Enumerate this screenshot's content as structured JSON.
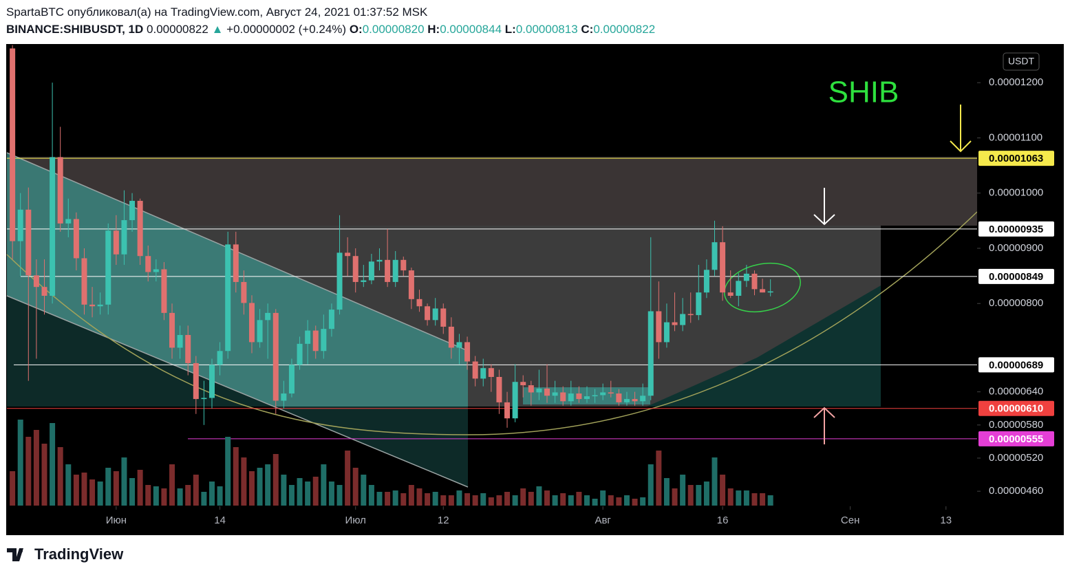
{
  "header": {
    "line1": "SpartaBTC опубликовал(а) на TradingView.com, Август 24, 2021 01:37:52 MSK",
    "symbol": "BINANCE:SHIBUSDT, 1D",
    "last": "0.00000822",
    "arrow": "▲",
    "change": "+0.00000002 (+0.24%)",
    "o_label": "O:",
    "o": "0.00000820",
    "h_label": "H:",
    "h": "0.00000844",
    "l_label": "L:",
    "l": "0.00000813",
    "c_label": "C:",
    "c": "0.00000822"
  },
  "chart_data": {
    "type": "candlestick",
    "currency": "USDT",
    "annotation": "SHIB",
    "up_color": "#3cc2b0",
    "down_color": "#e0716f",
    "volume_up_color": "#1f6e67",
    "volume_down_color": "#7b2c2c",
    "open": [
      1.262e-05,
      9.13e-06,
      9.7e-06,
      8.51e-06,
      8.3e-06,
      8.14e-06,
      1.065e-05,
      9.45e-06,
      9.53e-06,
      8.82e-06,
      7.98e-06,
      7.95e-06,
      7.98e-06,
      9.32e-06,
      8.89e-06,
      9.51e-06,
      9.86e-06,
      8.86e-06,
      8.57e-06,
      8.62e-06,
      7.83e-06,
      7.2e-06,
      7.43e-06,
      6.92e-06,
      6.27e-06,
      6.29e-06,
      6.89e-06,
      7.14e-06,
      9.07e-06,
      8.39e-06,
      8.01e-06,
      7.3e-06,
      7.7e-06,
      7.83e-06,
      6.24e-06,
      6.37e-06,
      6.89e-06,
      7.27e-06,
      7.51e-06,
      7.14e-06,
      7.54e-06,
      7.89e-06,
      8.92e-06,
      8.86e-06,
      8.39e-06,
      8.42e-06,
      8.76e-06,
      8.79e-06,
      8.39e-06,
      8.79e-06,
      8.6e-06,
      8.08e-06,
      7.95e-06,
      7.7e-06,
      7.91e-06,
      7.58e-06,
      7.2e-06,
      7.3e-06,
      6.95e-06,
      6.64e-06,
      6.83e-06,
      6.67e-06,
      6.21e-06,
      5.92e-06,
      6.58e-06,
      6.52e-06,
      6.39e-06,
      6.46e-06,
      6.33e-06,
      6.39e-06,
      6.23e-06,
      6.37e-06,
      6.27e-06,
      6.32e-06,
      6.34e-06,
      6.39e-06,
      6.37e-06,
      6.21e-06,
      6.27e-06,
      6.23e-06,
      6.33e-06,
      7.86e-06,
      7.3e-06,
      7.66e-06,
      7.61e-06,
      7.81e-06,
      7.79e-06,
      8.2e-06,
      8.61e-06,
      9.11e-06,
      8.2e-06,
      8.14e-06,
      8.41e-06,
      8.54e-06,
      8.26e-06,
      8.2e-06
    ],
    "high": [
      1.268e-05,
      1e-05,
      1.01e-05,
      8.8e-06,
      8.8e-06,
      1.2e-05,
      1.12e-05,
      9.9e-06,
      9.65e-06,
      9e-06,
      8.3e-06,
      8.2e-06,
      9.45e-06,
      9.6e-06,
      1.005e-05,
      1e-05,
      9.9e-06,
      9.05e-06,
      8.8e-06,
      8.75e-06,
      8e-06,
      7.6e-06,
      7.6e-06,
      7.05e-06,
      6.6e-06,
      7e-06,
      7.3e-06,
      9.3e-06,
      9.3e-06,
      8.6e-06,
      8.15e-06,
      7.9e-06,
      8e-06,
      7.9e-06,
      6.6e-06,
      7e-06,
      7.4e-06,
      7.7e-06,
      7.6e-06,
      7.8e-06,
      8e-06,
      9.6e-06,
      9.2e-06,
      9e-06,
      8.7e-06,
      8.9e-06,
      9e-06,
      9.35e-06,
      8.95e-06,
      8.85e-06,
      8.65e-06,
      8.25e-06,
      8e-06,
      8.1e-06,
      8e-06,
      7.75e-06,
      7.45e-06,
      7.4e-06,
      7.05e-06,
      7e-06,
      6.9e-06,
      6.8e-06,
      6.4e-06,
      6.9e-06,
      6.7e-06,
      6.6e-06,
      6.8e-06,
      6.9e-06,
      6.6e-06,
      6.5e-06,
      6.6e-06,
      6.5e-06,
      6.5e-06,
      6.45e-06,
      6.55e-06,
      6.6e-06,
      6.45e-06,
      6.4e-06,
      6.4e-06,
      6.55e-06,
      9.2e-06,
      8.4e-06,
      8e-06,
      8.2e-06,
      8.1e-06,
      8.2e-06,
      8.7e-06,
      8.8e-06,
      9.5e-06,
      9.4e-06,
      8.6e-06,
      8.55e-06,
      8.7e-06,
      8.6e-06,
      8.45e-06,
      8.44e-06
    ],
    "low": [
      8.8e-06,
      8.5e-06,
      6.6e-06,
      7e-06,
      7.8e-06,
      8e-06,
      9.3e-06,
      9.2e-06,
      8.6e-06,
      7.8e-06,
      7.75e-06,
      7.8e-06,
      7.8e-06,
      8.7e-06,
      8.7e-06,
      9.3e-06,
      8.7e-06,
      8.4e-06,
      8.4e-06,
      7.7e-06,
      7e-06,
      7e-06,
      6.7e-06,
      6e-06,
      5.8e-06,
      6.1e-06,
      6.7e-06,
      7e-06,
      8.2e-06,
      7.8e-06,
      7.1e-06,
      7.2e-06,
      7e-06,
      6e-06,
      6.1e-06,
      6.3e-06,
      6.8e-06,
      6.9e-06,
      7e-06,
      7e-06,
      7.4e-06,
      7.8e-06,
      8.5e-06,
      8.2e-06,
      8.3e-06,
      8.35e-06,
      8.6e-06,
      8.3e-06,
      8.3e-06,
      8.5e-06,
      7.9e-06,
      7.85e-06,
      7.6e-06,
      7.6e-06,
      7.45e-06,
      7e-06,
      6.9e-06,
      6.8e-06,
      6.5e-06,
      6.5e-06,
      6.4e-06,
      6e-06,
      5.75e-06,
      5.85e-06,
      6.3e-06,
      6.15e-06,
      6.25e-06,
      6.2e-06,
      6.2e-06,
      6.15e-06,
      6.15e-06,
      6.2e-06,
      6.2e-06,
      6.2e-06,
      6.25e-06,
      6.3e-06,
      6.15e-06,
      6.15e-06,
      6.15e-06,
      6.15e-06,
      6.25e-06,
      7e-06,
      7.2e-06,
      7.5e-06,
      7.5e-06,
      7.65e-06,
      7.7e-06,
      8.1e-06,
      8.5e-06,
      8.05e-06,
      8.1e-06,
      7.95e-06,
      8.3e-06,
      8.15e-06,
      8.2e-06,
      8.13e-06
    ],
    "close": [
      9.13e-06,
      9.7e-06,
      8.51e-06,
      8.3e-06,
      8.14e-06,
      1.065e-05,
      9.45e-06,
      9.53e-06,
      8.82e-06,
      7.98e-06,
      7.95e-06,
      7.98e-06,
      9.32e-06,
      8.89e-06,
      9.51e-06,
      9.86e-06,
      8.86e-06,
      8.57e-06,
      8.62e-06,
      7.83e-06,
      7.2e-06,
      7.43e-06,
      6.92e-06,
      6.27e-06,
      6.29e-06,
      6.89e-06,
      7.14e-06,
      9.07e-06,
      8.39e-06,
      8.01e-06,
      7.3e-06,
      7.7e-06,
      7.83e-06,
      6.24e-06,
      6.37e-06,
      6.89e-06,
      7.27e-06,
      7.51e-06,
      7.14e-06,
      7.54e-06,
      7.89e-06,
      8.92e-06,
      8.86e-06,
      8.39e-06,
      8.42e-06,
      8.76e-06,
      8.79e-06,
      8.39e-06,
      8.79e-06,
      8.6e-06,
      8.08e-06,
      7.95e-06,
      7.7e-06,
      7.91e-06,
      7.58e-06,
      7.2e-06,
      7.3e-06,
      6.95e-06,
      6.64e-06,
      6.83e-06,
      6.67e-06,
      6.21e-06,
      5.92e-06,
      6.58e-06,
      6.52e-06,
      6.39e-06,
      6.46e-06,
      6.33e-06,
      6.39e-06,
      6.23e-06,
      6.37e-06,
      6.27e-06,
      6.32e-06,
      6.34e-06,
      6.39e-06,
      6.37e-06,
      6.21e-06,
      6.27e-06,
      6.23e-06,
      6.33e-06,
      7.86e-06,
      7.3e-06,
      7.66e-06,
      7.61e-06,
      7.81e-06,
      7.79e-06,
      8.2e-06,
      8.61e-06,
      9.11e-06,
      8.2e-06,
      8.14e-06,
      8.41e-06,
      8.54e-06,
      8.26e-06,
      8.2e-06,
      8.22e-06
    ],
    "volume": [
      50,
      125,
      100,
      110,
      90,
      120,
      85,
      60,
      45,
      48,
      38,
      35,
      55,
      50,
      70,
      40,
      52,
      30,
      28,
      25,
      60,
      25,
      30,
      45,
      20,
      35,
      28,
      100,
      85,
      70,
      50,
      55,
      60,
      75,
      45,
      30,
      40,
      35,
      42,
      60,
      35,
      30,
      80,
      55,
      45,
      30,
      20,
      20,
      22,
      18,
      30,
      25,
      18,
      20,
      15,
      15,
      22,
      18,
      15,
      18,
      12,
      15,
      20,
      15,
      25,
      20,
      28,
      22,
      15,
      18,
      15,
      20,
      15,
      10,
      22,
      15,
      12,
      15,
      10,
      12,
      60,
      80,
      40,
      25,
      45,
      30,
      30,
      35,
      70,
      45,
      25,
      22,
      22,
      18,
      18,
      15
    ],
    "volume_lim": [
      0,
      130
    ],
    "xlim": [
      -0.7,
      120.9
    ],
    "xticks": [
      {
        "value": 13,
        "label": "Июн"
      },
      {
        "value": 26,
        "label": "14"
      },
      {
        "value": 43,
        "label": "Июл"
      },
      {
        "value": 54,
        "label": "12"
      },
      {
        "value": 74,
        "label": "Авг"
      },
      {
        "value": 89,
        "label": "16"
      },
      {
        "value": 105,
        "label": "Сен"
      },
      {
        "value": 117,
        "label": "13"
      }
    ],
    "ylim": [
      4.34e-06,
      1.27e-05
    ],
    "yticks": [
      {
        "value": 1.2e-05,
        "label": "0.00001200"
      },
      {
        "value": 1.1e-05,
        "label": "0.00001100"
      },
      {
        "value": 1e-05,
        "label": "0.00001000"
      },
      {
        "value": 9e-06,
        "label": "0.00000900"
      },
      {
        "value": 8e-06,
        "label": "0.00000800"
      },
      {
        "value": 6.4e-06,
        "label": "0.00000640"
      },
      {
        "value": 5.8e-06,
        "label": "0.00000580"
      },
      {
        "value": 5.2e-06,
        "label": "0.00000520"
      },
      {
        "value": 4.6e-06,
        "label": "0.00000460"
      }
    ],
    "levels": [
      {
        "value": 1.063e-05,
        "label": "0.00001063",
        "color": "#f5e94c",
        "text_color": "#000000"
      },
      {
        "value": 9.35e-06,
        "label": "0.00000935",
        "color": "#ffffff",
        "text_color": "#000000"
      },
      {
        "value": 8.49e-06,
        "label": "0.00000849",
        "color": "#ffffff",
        "text_color": "#000000"
      },
      {
        "value": 6.89e-06,
        "label": "0.00000689",
        "color": "#ffffff",
        "text_color": "#000000"
      },
      {
        "value": 6.1e-06,
        "label": "0.00000610",
        "color": "#f0413f",
        "text_color": "#ffffff"
      },
      {
        "value": 5.55e-06,
        "label": "0.00000555",
        "color": "#e53fd6",
        "text_color": "#ffffff"
      }
    ]
  },
  "footer": {
    "brand": "TradingView"
  }
}
